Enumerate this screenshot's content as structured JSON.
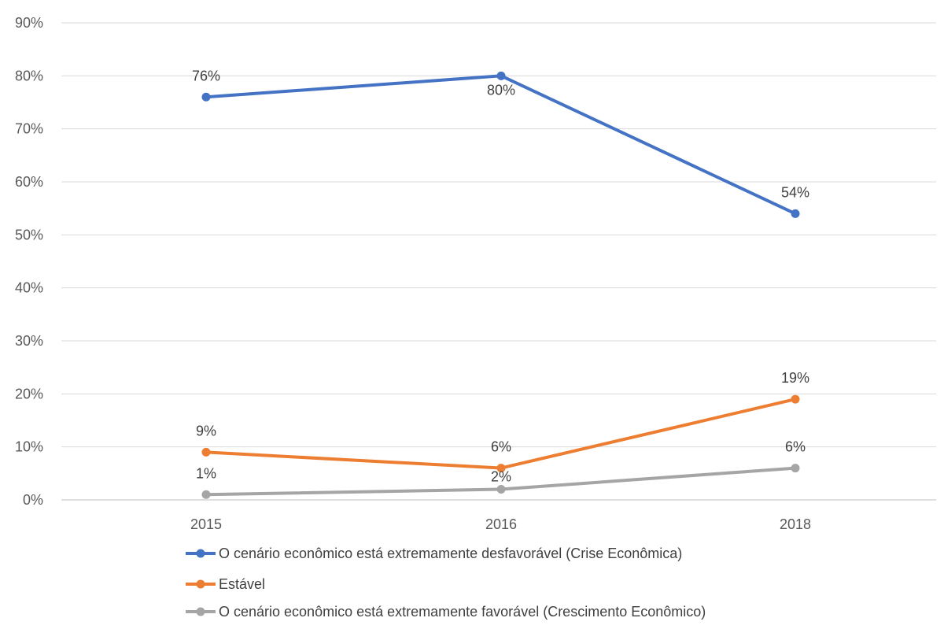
{
  "chart_data": {
    "type": "line",
    "categories": [
      "2015",
      "2016",
      "2018"
    ],
    "ylim": [
      0,
      90
    ],
    "yticks": [
      0,
      10,
      20,
      30,
      40,
      50,
      60,
      70,
      80,
      90
    ],
    "ytick_labels": [
      "0%",
      "10%",
      "20%",
      "30%",
      "40%",
      "50%",
      "60%",
      "70%",
      "80%",
      "90%"
    ],
    "grid": "horizontal",
    "legend_position": "bottom",
    "series": [
      {
        "name": "O cenário econômico está extremamente desfavorável (Crise Econômica)",
        "values": [
          76,
          80,
          54
        ],
        "labels": [
          "76%",
          "80%",
          "54%"
        ],
        "color": "#4472C4"
      },
      {
        "name": "Estável",
        "values": [
          9,
          6,
          19
        ],
        "labels": [
          "9%",
          "6%",
          "19%"
        ],
        "color": "#ED7D31"
      },
      {
        "name": "O cenário econômico está extremamente favorável (Crescimento Econômico)",
        "values": [
          1,
          2,
          6
        ],
        "labels": [
          "1%",
          "2%",
          "6%"
        ],
        "color": "#A5A5A5"
      }
    ]
  }
}
